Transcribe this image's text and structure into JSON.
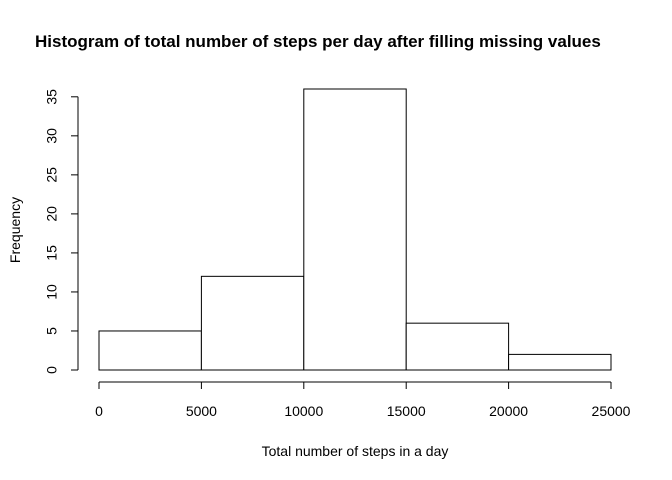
{
  "chart_data": {
    "type": "bar",
    "title": "Histogram of total number of steps per day after filling missing values",
    "xlabel": "Total number of steps in a day",
    "ylabel": "Frequency",
    "bins": [
      {
        "start": 0,
        "end": 5000,
        "value": 5
      },
      {
        "start": 5000,
        "end": 10000,
        "value": 12
      },
      {
        "start": 10000,
        "end": 15000,
        "value": 36
      },
      {
        "start": 15000,
        "end": 20000,
        "value": 6
      },
      {
        "start": 20000,
        "end": 25000,
        "value": 2
      }
    ],
    "x_ticks": [
      0,
      5000,
      10000,
      15000,
      20000,
      25000
    ],
    "y_ticks": [
      0,
      5,
      10,
      15,
      20,
      25,
      30,
      35
    ],
    "xlim": [
      0,
      25000
    ],
    "ylim": [
      0,
      36
    ],
    "grid": false,
    "legend": "none",
    "colors": {
      "bar_fill": "#ffffff",
      "bar_stroke": "#000000",
      "axis": "#000000",
      "background": "#ffffff"
    }
  }
}
